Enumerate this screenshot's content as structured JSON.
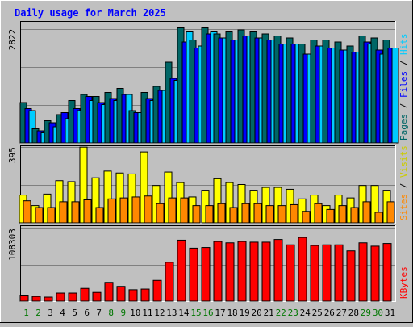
{
  "chart_data": [
    {
      "type": "bar",
      "title": "Daily usage for March 2025",
      "categories": [
        "1",
        "2",
        "3",
        "4",
        "5",
        "6",
        "7",
        "8",
        "9",
        "10",
        "11",
        "12",
        "13",
        "14",
        "15",
        "16",
        "17",
        "18",
        "19",
        "20",
        "21",
        "22",
        "23",
        "24",
        "25",
        "26",
        "27",
        "28",
        "29",
        "30",
        "31"
      ],
      "weekend_days": [
        "1",
        "2",
        "8",
        "9",
        "15",
        "16",
        "22",
        "23",
        "29",
        "30"
      ],
      "ytick": "2822",
      "ylim": [
        0,
        3000
      ],
      "series": [
        {
          "name": "Pages",
          "color": "#006666",
          "values": [
            1000,
            350,
            550,
            700,
            1050,
            1200,
            1150,
            1250,
            1350,
            800,
            1250,
            1400,
            2000,
            2850,
            2550,
            2850,
            2700,
            2750,
            2800,
            2750,
            2700,
            2650,
            2600,
            2450,
            2550,
            2550,
            2500,
            2400,
            2650,
            2600,
            2550
          ]
        },
        {
          "name": "Files",
          "color": "#0000ff",
          "values": [
            850,
            300,
            500,
            750,
            850,
            1150,
            1000,
            1100,
            1200,
            750,
            1100,
            1300,
            1600,
            2500,
            2350,
            2700,
            2600,
            2550,
            2650,
            2600,
            2550,
            2450,
            2450,
            2200,
            2400,
            2350,
            2300,
            2250,
            2500,
            2300,
            2350
          ]
        },
        {
          "name": "Hits",
          "color": "#00ccff",
          "values": [
            800,
            250,
            400,
            600,
            800,
            1050,
            950,
            1050,
            1200,
            750,
            1050,
            1300,
            1550,
            2750,
            2400,
            2750,
            2600,
            2550,
            2650,
            2600,
            2550,
            2450,
            2450,
            2200,
            2400,
            2350,
            2300,
            2250,
            2450,
            2200,
            2350
          ]
        }
      ]
    },
    {
      "type": "bar",
      "ytick": "395",
      "ylim": [
        0,
        400
      ],
      "series": [
        {
          "name": "Sites",
          "color": "#ff8800",
          "values": [
            115,
            80,
            80,
            110,
            110,
            120,
            80,
            125,
            130,
            135,
            140,
            100,
            130,
            130,
            90,
            90,
            100,
            80,
            100,
            100,
            90,
            90,
            95,
            60,
            100,
            70,
            90,
            80,
            110,
            55,
            110
          ]
        },
        {
          "name": "Visits",
          "color": "#ffff00",
          "values": [
            145,
            90,
            150,
            220,
            215,
            395,
            235,
            270,
            260,
            255,
            370,
            195,
            265,
            210,
            135,
            170,
            230,
            210,
            200,
            170,
            185,
            185,
            175,
            125,
            145,
            90,
            145,
            130,
            195,
            195,
            170
          ]
        }
      ]
    },
    {
      "type": "bar",
      "ytick": "108303",
      "ylim": [
        0,
        112000
      ],
      "series": [
        {
          "name": "KBytes",
          "color": "#ff0000",
          "values": [
            9000,
            7000,
            6000,
            12000,
            12000,
            19000,
            13000,
            28000,
            22000,
            17000,
            18000,
            31000,
            58000,
            91000,
            79000,
            80000,
            89000,
            87000,
            89000,
            88000,
            88000,
            92000,
            84000,
            95000,
            83000,
            84000,
            84000,
            75000,
            87000,
            82000,
            86000
          ]
        }
      ]
    }
  ]
}
